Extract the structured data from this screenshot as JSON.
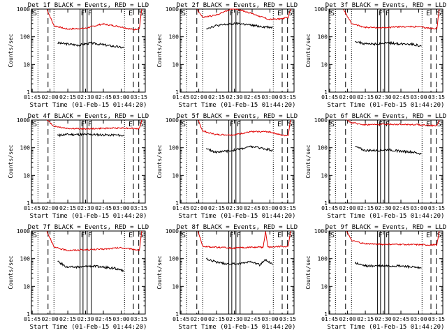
{
  "chart_data": {
    "type": "line",
    "shared": {
      "xlabel": "Start Time (01-Feb-15 01:44:20)",
      "ylabel": "Counts/sec",
      "x_ticks": [
        "01:45",
        "02:00",
        "02:15",
        "02:30",
        "02:45",
        "03:00",
        "03:15"
      ],
      "x_tick_minutes": [
        0.67,
        15.67,
        30.67,
        45.67,
        60.67,
        75.67,
        90.67
      ],
      "xlim_minutes": [
        0,
        96
      ],
      "y_scale": "log",
      "ylim": [
        1,
        1000
      ],
      "y_ticks": [
        "1",
        "10",
        "100",
        "1000"
      ],
      "series_colors": {
        "events": "#000000",
        "lld": "#e00000"
      },
      "series_names": {
        "events": "BLACK = Events",
        "lld": "RED = LLD"
      }
    },
    "panels": [
      {
        "title": "Det 1f BLACK = Events, RED = LLD",
        "left_marks": [
          "S"
        ],
        "right_marks": [
          "E",
          "S"
        ],
        "mid_marks": [
          "F",
          "F"
        ],
        "events": [
          [
            22,
            60
          ],
          [
            30,
            55
          ],
          [
            40,
            50
          ],
          [
            50,
            60
          ],
          [
            60,
            52
          ],
          [
            70,
            45
          ],
          [
            78,
            40
          ]
        ],
        "lld": [
          [
            13,
            1000
          ],
          [
            19,
            250
          ],
          [
            30,
            190
          ],
          [
            45,
            200
          ],
          [
            60,
            290
          ],
          [
            75,
            230
          ],
          [
            86,
            180
          ],
          [
            91,
            200
          ],
          [
            93,
            1000
          ]
        ]
      },
      {
        "title": "Det 2f BLACK = Events, RED = LLD",
        "left_marks": [
          "S"
        ],
        "right_marks": [
          "E",
          "S"
        ],
        "mid_marks": [
          "F",
          "F"
        ],
        "events": [
          [
            22,
            200
          ],
          [
            30,
            250
          ],
          [
            40,
            280
          ],
          [
            50,
            300
          ],
          [
            60,
            260
          ],
          [
            70,
            230
          ],
          [
            78,
            220
          ]
        ],
        "lld": [
          [
            14,
            1000
          ],
          [
            19,
            500
          ],
          [
            30,
            600
          ],
          [
            45,
            1100
          ],
          [
            60,
            700
          ],
          [
            75,
            420
          ],
          [
            86,
            450
          ],
          [
            91,
            500
          ],
          [
            93,
            1000
          ]
        ]
      },
      {
        "title": "Det 3f BLACK = Events, RED = LLD",
        "left_marks": [
          "S"
        ],
        "right_marks": [
          "E",
          "S"
        ],
        "mid_marks": [
          "F",
          "F"
        ],
        "events": [
          [
            22,
            70
          ],
          [
            30,
            55
          ],
          [
            40,
            55
          ],
          [
            50,
            60
          ],
          [
            60,
            55
          ],
          [
            70,
            55
          ],
          [
            78,
            45
          ]
        ],
        "lld": [
          [
            12,
            1000
          ],
          [
            19,
            300
          ],
          [
            30,
            220
          ],
          [
            45,
            210
          ],
          [
            60,
            230
          ],
          [
            75,
            230
          ],
          [
            86,
            200
          ],
          [
            91,
            200
          ],
          [
            93,
            1000
          ]
        ]
      },
      {
        "title": "Det 4f BLACK = Events, RED = LLD",
        "left_marks": [
          "S"
        ],
        "right_marks": [
          "E",
          "S"
        ],
        "mid_marks": [
          "F",
          "F"
        ],
        "events": [
          [
            22,
            280
          ],
          [
            30,
            300
          ],
          [
            40,
            300
          ],
          [
            50,
            300
          ],
          [
            60,
            290
          ],
          [
            70,
            290
          ],
          [
            78,
            270
          ]
        ],
        "lld": [
          [
            13,
            1000
          ],
          [
            19,
            600
          ],
          [
            30,
            500
          ],
          [
            45,
            480
          ],
          [
            60,
            500
          ],
          [
            75,
            520
          ],
          [
            86,
            500
          ],
          [
            91,
            480
          ],
          [
            93,
            1000
          ]
        ]
      },
      {
        "title": "Det 5f BLACK = Events, RED = LLD",
        "left_marks": [
          "S"
        ],
        "right_marks": [
          "E",
          "S"
        ],
        "mid_marks": [
          "F",
          "F"
        ],
        "events": [
          [
            22,
            90
          ],
          [
            30,
            70
          ],
          [
            40,
            75
          ],
          [
            50,
            90
          ],
          [
            60,
            110
          ],
          [
            70,
            95
          ],
          [
            78,
            80
          ]
        ],
        "lld": [
          [
            15,
            1000
          ],
          [
            19,
            400
          ],
          [
            30,
            300
          ],
          [
            45,
            290
          ],
          [
            60,
            380
          ],
          [
            75,
            380
          ],
          [
            86,
            280
          ],
          [
            91,
            280
          ],
          [
            93,
            1000
          ]
        ]
      },
      {
        "title": "Det 6f BLACK = Events, RED = LLD",
        "left_marks": [
          "S"
        ],
        "right_marks": [
          "E",
          "S"
        ],
        "mid_marks": [
          "F",
          "F"
        ],
        "events": [
          [
            22,
            110
          ],
          [
            30,
            80
          ],
          [
            40,
            80
          ],
          [
            50,
            85
          ],
          [
            60,
            75
          ],
          [
            70,
            70
          ],
          [
            78,
            60
          ]
        ],
        "lld": [
          [
            15,
            1000
          ],
          [
            19,
            800
          ],
          [
            30,
            680
          ],
          [
            45,
            700
          ],
          [
            60,
            700
          ],
          [
            75,
            680
          ],
          [
            86,
            640
          ],
          [
            91,
            620
          ],
          [
            93,
            1000
          ]
        ]
      },
      {
        "title": "Det 7f BLACK = Events, RED = LLD",
        "left_marks": [
          "S"
        ],
        "right_marks": [
          "E",
          "S"
        ],
        "mid_marks": [
          "F",
          "F"
        ],
        "events": [
          [
            22,
            80
          ],
          [
            30,
            50
          ],
          [
            40,
            50
          ],
          [
            50,
            55
          ],
          [
            60,
            50
          ],
          [
            70,
            45
          ],
          [
            78,
            35
          ]
        ],
        "lld": [
          [
            13,
            1000
          ],
          [
            19,
            260
          ],
          [
            30,
            200
          ],
          [
            45,
            210
          ],
          [
            60,
            220
          ],
          [
            75,
            250
          ],
          [
            86,
            220
          ],
          [
            91,
            200
          ],
          [
            93,
            1000
          ]
        ]
      },
      {
        "title": "Det 8f BLACK = Events, RED = LLD",
        "left_marks": [
          "S"
        ],
        "right_marks": [
          "E",
          "S"
        ],
        "mid_marks": [
          "F",
          "F"
        ],
        "events": [
          [
            22,
            100
          ],
          [
            30,
            75
          ],
          [
            40,
            65
          ],
          [
            50,
            65
          ],
          [
            60,
            80
          ],
          [
            67,
            60
          ],
          [
            72,
            90
          ],
          [
            78,
            60
          ]
        ],
        "lld": [
          [
            15,
            1000
          ],
          [
            19,
            280
          ],
          [
            30,
            260
          ],
          [
            45,
            240
          ],
          [
            60,
            260
          ],
          [
            70,
            260
          ],
          [
            72,
            1000
          ],
          [
            74,
            260
          ],
          [
            86,
            280
          ],
          [
            91,
            270
          ],
          [
            93,
            1000
          ]
        ]
      },
      {
        "title": "Det 9f BLACK = Events, RED = LLD",
        "left_marks": [
          "S"
        ],
        "right_marks": [
          "E",
          "S"
        ],
        "mid_marks": [
          "F",
          "F"
        ],
        "events": [
          [
            22,
            70
          ],
          [
            30,
            55
          ],
          [
            40,
            55
          ],
          [
            50,
            55
          ],
          [
            60,
            55
          ],
          [
            70,
            50
          ],
          [
            78,
            45
          ]
        ],
        "lld": [
          [
            15,
            1000
          ],
          [
            19,
            450
          ],
          [
            30,
            350
          ],
          [
            45,
            330
          ],
          [
            60,
            330
          ],
          [
            75,
            320
          ],
          [
            86,
            310
          ],
          [
            91,
            320
          ],
          [
            93,
            1000
          ]
        ]
      }
    ]
  }
}
